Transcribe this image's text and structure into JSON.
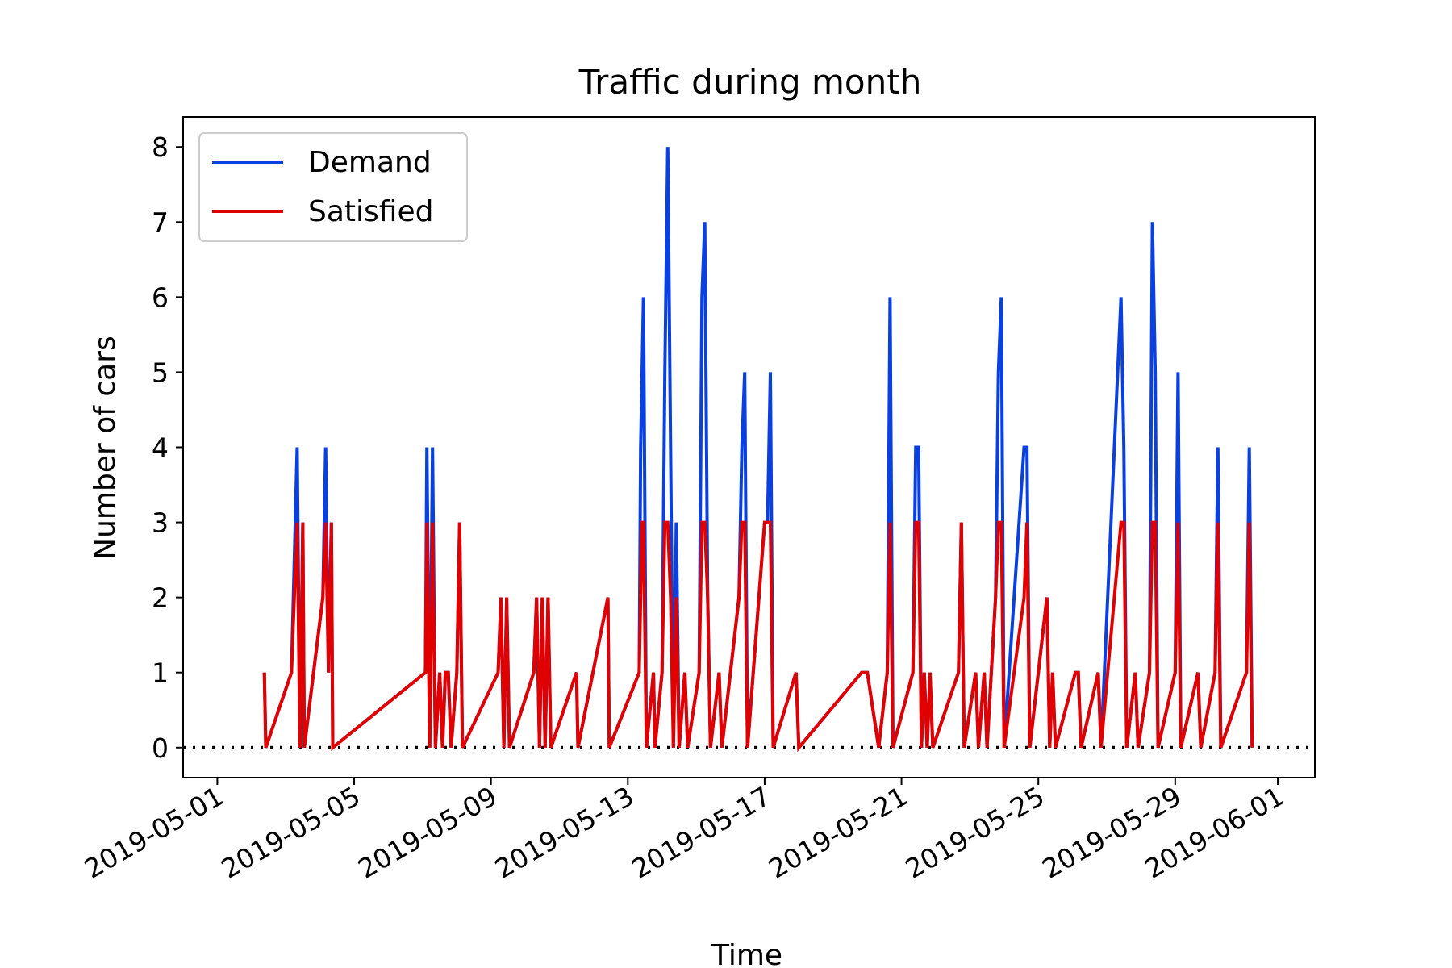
{
  "chart_data": {
    "type": "line",
    "title": "Traffic during month",
    "xlabel": "Time",
    "ylabel": "Number of cars",
    "xlim": [
      "2019-04-30T00:00",
      "2019-06-02T02:00"
    ],
    "ylim": [
      -0.4,
      8.4
    ],
    "x_ticks": [
      "2019-05-01",
      "2019-05-05",
      "2019-05-09",
      "2019-05-13",
      "2019-05-17",
      "2019-05-21",
      "2019-05-25",
      "2019-05-29",
      "2019-06-01"
    ],
    "y_ticks": [
      0,
      1,
      2,
      3,
      4,
      5,
      6,
      7,
      8
    ],
    "grid": false,
    "legend": "upper-left",
    "reference_line": {
      "y": 0,
      "style": "dotted",
      "color": "#000000"
    },
    "series": [
      {
        "name": "Demand",
        "color": "#0a3fe0",
        "points": [
          [
            "2019-05-02T09:00",
            1
          ],
          [
            "2019-05-02T10:00",
            0
          ],
          [
            "2019-05-03T04:00",
            1
          ],
          [
            "2019-05-03T08:00",
            4
          ],
          [
            "2019-05-03T10:00",
            0
          ],
          [
            "2019-05-03T12:00",
            3
          ],
          [
            "2019-05-03T13:00",
            0
          ],
          [
            "2019-05-04T02:00",
            2
          ],
          [
            "2019-05-04T04:00",
            4
          ],
          [
            "2019-05-04T06:00",
            1
          ],
          [
            "2019-05-04T08:00",
            3
          ],
          [
            "2019-05-04T09:00",
            0
          ],
          [
            "2019-05-07T02:00",
            1
          ],
          [
            "2019-05-07T03:00",
            4
          ],
          [
            "2019-05-07T05:00",
            0
          ],
          [
            "2019-05-07T07:00",
            4
          ],
          [
            "2019-05-07T09:00",
            0
          ],
          [
            "2019-05-07T12:00",
            1
          ],
          [
            "2019-05-07T14:00",
            0
          ],
          [
            "2019-05-07T16:00",
            1
          ],
          [
            "2019-05-07T18:00",
            1
          ],
          [
            "2019-05-07T20:00",
            0
          ],
          [
            "2019-05-08T00:00",
            1
          ],
          [
            "2019-05-08T02:00",
            3
          ],
          [
            "2019-05-08T04:00",
            0
          ],
          [
            "2019-05-09T05:00",
            1
          ],
          [
            "2019-05-09T07:00",
            2
          ],
          [
            "2019-05-09T09:00",
            0
          ],
          [
            "2019-05-09T11:00",
            2
          ],
          [
            "2019-05-09T13:00",
            0
          ],
          [
            "2019-05-10T06:00",
            1
          ],
          [
            "2019-05-10T08:00",
            2
          ],
          [
            "2019-05-10T10:00",
            0
          ],
          [
            "2019-05-10T12:00",
            2
          ],
          [
            "2019-05-10T14:00",
            0
          ],
          [
            "2019-05-10T16:00",
            2
          ],
          [
            "2019-05-10T18:00",
            0
          ],
          [
            "2019-05-11T12:00",
            1
          ],
          [
            "2019-05-11T13:00",
            0
          ],
          [
            "2019-05-12T10:00",
            2
          ],
          [
            "2019-05-12T11:00",
            0
          ],
          [
            "2019-05-13T08:00",
            1
          ],
          [
            "2019-05-13T09:00",
            4
          ],
          [
            "2019-05-13T10:00",
            5
          ],
          [
            "2019-05-13T11:00",
            6
          ],
          [
            "2019-05-13T13:00",
            0
          ],
          [
            "2019-05-13T18:00",
            1
          ],
          [
            "2019-05-13T19:00",
            0
          ],
          [
            "2019-05-14T00:00",
            1
          ],
          [
            "2019-05-14T02:00",
            5
          ],
          [
            "2019-05-14T04:00",
            8
          ],
          [
            "2019-05-14T06:00",
            4
          ],
          [
            "2019-05-14T08:00",
            0
          ],
          [
            "2019-05-14T10:00",
            3
          ],
          [
            "2019-05-14T12:00",
            0
          ],
          [
            "2019-05-14T16:00",
            1
          ],
          [
            "2019-05-14T18:00",
            0
          ],
          [
            "2019-05-15T02:00",
            1
          ],
          [
            "2019-05-15T04:00",
            6
          ],
          [
            "2019-05-15T06:00",
            7
          ],
          [
            "2019-05-15T08:00",
            2
          ],
          [
            "2019-05-15T10:00",
            0
          ],
          [
            "2019-05-15T16:00",
            1
          ],
          [
            "2019-05-15T18:00",
            0
          ],
          [
            "2019-05-16T06:00",
            2
          ],
          [
            "2019-05-16T08:00",
            4
          ],
          [
            "2019-05-16T10:00",
            5
          ],
          [
            "2019-05-16T12:00",
            0
          ],
          [
            "2019-05-17T00:00",
            3
          ],
          [
            "2019-05-17T02:00",
            3
          ],
          [
            "2019-05-17T04:00",
            5
          ],
          [
            "2019-05-17T06:00",
            0
          ],
          [
            "2019-05-17T22:00",
            1
          ],
          [
            "2019-05-18T00:00",
            0
          ],
          [
            "2019-05-19T20:00",
            1
          ],
          [
            "2019-05-20T00:00",
            1
          ],
          [
            "2019-05-20T08:00",
            0
          ],
          [
            "2019-05-20T14:00",
            1
          ],
          [
            "2019-05-20T16:00",
            6
          ],
          [
            "2019-05-20T18:00",
            0
          ],
          [
            "2019-05-21T08:00",
            1
          ],
          [
            "2019-05-21T10:00",
            4
          ],
          [
            "2019-05-21T12:00",
            4
          ],
          [
            "2019-05-21T14:00",
            0
          ],
          [
            "2019-05-21T16:00",
            1
          ],
          [
            "2019-05-21T18:00",
            0
          ],
          [
            "2019-05-21T20:00",
            1
          ],
          [
            "2019-05-21T22:00",
            0
          ],
          [
            "2019-05-22T16:00",
            1
          ],
          [
            "2019-05-22T18:00",
            3
          ],
          [
            "2019-05-22T20:00",
            0
          ],
          [
            "2019-05-23T04:00",
            1
          ],
          [
            "2019-05-23T06:00",
            0
          ],
          [
            "2019-05-23T10:00",
            1
          ],
          [
            "2019-05-23T12:00",
            0
          ],
          [
            "2019-05-23T18:00",
            2
          ],
          [
            "2019-05-23T20:00",
            5
          ],
          [
            "2019-05-23T22:00",
            6
          ],
          [
            "2019-05-24T00:00",
            0
          ],
          [
            "2019-05-24T14:00",
            4
          ],
          [
            "2019-05-24T16:00",
            4
          ],
          [
            "2019-05-24T18:00",
            0
          ],
          [
            "2019-05-25T06:00",
            2
          ],
          [
            "2019-05-25T08:00",
            0
          ],
          [
            "2019-05-25T10:00",
            1
          ],
          [
            "2019-05-25T12:00",
            0
          ],
          [
            "2019-05-26T02:00",
            1
          ],
          [
            "2019-05-26T04:00",
            1
          ],
          [
            "2019-05-26T06:00",
            0
          ],
          [
            "2019-05-26T18:00",
            1
          ],
          [
            "2019-05-26T20:00",
            0
          ],
          [
            "2019-05-27T10:00",
            6
          ],
          [
            "2019-05-27T12:00",
            4
          ],
          [
            "2019-05-27T14:00",
            0
          ],
          [
            "2019-05-27T20:00",
            1
          ],
          [
            "2019-05-27T22:00",
            0
          ],
          [
            "2019-05-28T06:00",
            1
          ],
          [
            "2019-05-28T08:00",
            7
          ],
          [
            "2019-05-28T10:00",
            5
          ],
          [
            "2019-05-28T12:00",
            0
          ],
          [
            "2019-05-29T00:00",
            1
          ],
          [
            "2019-05-29T02:00",
            5
          ],
          [
            "2019-05-29T04:00",
            0
          ],
          [
            "2019-05-29T16:00",
            1
          ],
          [
            "2019-05-29T18:00",
            0
          ],
          [
            "2019-05-30T04:00",
            1
          ],
          [
            "2019-05-30T06:00",
            4
          ],
          [
            "2019-05-30T08:00",
            0
          ],
          [
            "2019-05-31T02:00",
            1
          ],
          [
            "2019-05-31T04:00",
            4
          ],
          [
            "2019-05-31T06:00",
            0
          ]
        ]
      },
      {
        "name": "Satisfied",
        "color": "#e00000",
        "points": [
          [
            "2019-05-02T09:00",
            1
          ],
          [
            "2019-05-02T10:00",
            0
          ],
          [
            "2019-05-03T04:00",
            1
          ],
          [
            "2019-05-03T08:00",
            3
          ],
          [
            "2019-05-03T10:00",
            0
          ],
          [
            "2019-05-03T12:00",
            3
          ],
          [
            "2019-05-03T13:00",
            0
          ],
          [
            "2019-05-04T02:00",
            2
          ],
          [
            "2019-05-04T04:00",
            3
          ],
          [
            "2019-05-04T06:00",
            1
          ],
          [
            "2019-05-04T08:00",
            3
          ],
          [
            "2019-05-04T09:00",
            0
          ],
          [
            "2019-05-07T02:00",
            1
          ],
          [
            "2019-05-07T03:00",
            3
          ],
          [
            "2019-05-07T05:00",
            0
          ],
          [
            "2019-05-07T07:00",
            3
          ],
          [
            "2019-05-07T09:00",
            0
          ],
          [
            "2019-05-07T12:00",
            1
          ],
          [
            "2019-05-07T14:00",
            0
          ],
          [
            "2019-05-07T16:00",
            1
          ],
          [
            "2019-05-07T18:00",
            1
          ],
          [
            "2019-05-07T20:00",
            0
          ],
          [
            "2019-05-08T00:00",
            1
          ],
          [
            "2019-05-08T02:00",
            3
          ],
          [
            "2019-05-08T04:00",
            0
          ],
          [
            "2019-05-09T05:00",
            1
          ],
          [
            "2019-05-09T07:00",
            2
          ],
          [
            "2019-05-09T09:00",
            0
          ],
          [
            "2019-05-09T11:00",
            2
          ],
          [
            "2019-05-09T13:00",
            0
          ],
          [
            "2019-05-10T06:00",
            1
          ],
          [
            "2019-05-10T08:00",
            2
          ],
          [
            "2019-05-10T10:00",
            0
          ],
          [
            "2019-05-10T12:00",
            2
          ],
          [
            "2019-05-10T14:00",
            0
          ],
          [
            "2019-05-10T16:00",
            2
          ],
          [
            "2019-05-10T18:00",
            0
          ],
          [
            "2019-05-11T12:00",
            1
          ],
          [
            "2019-05-11T13:00",
            0
          ],
          [
            "2019-05-12T10:00",
            2
          ],
          [
            "2019-05-12T11:00",
            0
          ],
          [
            "2019-05-13T08:00",
            1
          ],
          [
            "2019-05-13T09:00",
            2
          ],
          [
            "2019-05-13T10:00",
            3
          ],
          [
            "2019-05-13T11:00",
            3
          ],
          [
            "2019-05-13T13:00",
            0
          ],
          [
            "2019-05-13T18:00",
            1
          ],
          [
            "2019-05-13T19:00",
            0
          ],
          [
            "2019-05-14T00:00",
            1
          ],
          [
            "2019-05-14T02:00",
            3
          ],
          [
            "2019-05-14T04:00",
            3
          ],
          [
            "2019-05-14T06:00",
            2
          ],
          [
            "2019-05-14T08:00",
            0
          ],
          [
            "2019-05-14T10:00",
            2
          ],
          [
            "2019-05-14T12:00",
            0
          ],
          [
            "2019-05-14T16:00",
            1
          ],
          [
            "2019-05-14T18:00",
            0
          ],
          [
            "2019-05-15T02:00",
            1
          ],
          [
            "2019-05-15T04:00",
            3
          ],
          [
            "2019-05-15T06:00",
            3
          ],
          [
            "2019-05-15T08:00",
            2
          ],
          [
            "2019-05-15T10:00",
            0
          ],
          [
            "2019-05-15T16:00",
            1
          ],
          [
            "2019-05-15T18:00",
            0
          ],
          [
            "2019-05-16T06:00",
            2
          ],
          [
            "2019-05-16T08:00",
            3
          ],
          [
            "2019-05-16T10:00",
            3
          ],
          [
            "2019-05-16T12:00",
            0
          ],
          [
            "2019-05-17T00:00",
            3
          ],
          [
            "2019-05-17T02:00",
            3
          ],
          [
            "2019-05-17T04:00",
            3
          ],
          [
            "2019-05-17T06:00",
            0
          ],
          [
            "2019-05-17T22:00",
            1
          ],
          [
            "2019-05-18T00:00",
            0
          ],
          [
            "2019-05-19T20:00",
            1
          ],
          [
            "2019-05-20T00:00",
            1
          ],
          [
            "2019-05-20T08:00",
            0
          ],
          [
            "2019-05-20T14:00",
            1
          ],
          [
            "2019-05-20T16:00",
            3
          ],
          [
            "2019-05-20T18:00",
            0
          ],
          [
            "2019-05-21T08:00",
            1
          ],
          [
            "2019-05-21T10:00",
            3
          ],
          [
            "2019-05-21T12:00",
            3
          ],
          [
            "2019-05-21T14:00",
            0
          ],
          [
            "2019-05-21T16:00",
            1
          ],
          [
            "2019-05-21T18:00",
            0
          ],
          [
            "2019-05-21T20:00",
            1
          ],
          [
            "2019-05-21T22:00",
            0
          ],
          [
            "2019-05-22T16:00",
            1
          ],
          [
            "2019-05-22T18:00",
            3
          ],
          [
            "2019-05-22T20:00",
            0
          ],
          [
            "2019-05-23T04:00",
            1
          ],
          [
            "2019-05-23T06:00",
            0
          ],
          [
            "2019-05-23T10:00",
            1
          ],
          [
            "2019-05-23T12:00",
            0
          ],
          [
            "2019-05-23T18:00",
            2
          ],
          [
            "2019-05-23T20:00",
            3
          ],
          [
            "2019-05-23T22:00",
            3
          ],
          [
            "2019-05-24T00:00",
            0
          ],
          [
            "2019-05-24T14:00",
            2
          ],
          [
            "2019-05-24T16:00",
            3
          ],
          [
            "2019-05-24T18:00",
            0
          ],
          [
            "2019-05-25T06:00",
            2
          ],
          [
            "2019-05-25T08:00",
            0
          ],
          [
            "2019-05-25T10:00",
            1
          ],
          [
            "2019-05-25T12:00",
            0
          ],
          [
            "2019-05-26T02:00",
            1
          ],
          [
            "2019-05-26T04:00",
            1
          ],
          [
            "2019-05-26T06:00",
            0
          ],
          [
            "2019-05-26T18:00",
            1
          ],
          [
            "2019-05-26T20:00",
            0
          ],
          [
            "2019-05-27T10:00",
            3
          ],
          [
            "2019-05-27T12:00",
            3
          ],
          [
            "2019-05-27T14:00",
            0
          ],
          [
            "2019-05-27T20:00",
            1
          ],
          [
            "2019-05-27T22:00",
            0
          ],
          [
            "2019-05-28T06:00",
            1
          ],
          [
            "2019-05-28T08:00",
            3
          ],
          [
            "2019-05-28T10:00",
            3
          ],
          [
            "2019-05-28T12:00",
            0
          ],
          [
            "2019-05-29T00:00",
            1
          ],
          [
            "2019-05-29T02:00",
            3
          ],
          [
            "2019-05-29T04:00",
            0
          ],
          [
            "2019-05-29T16:00",
            1
          ],
          [
            "2019-05-29T18:00",
            0
          ],
          [
            "2019-05-30T04:00",
            1
          ],
          [
            "2019-05-30T06:00",
            3
          ],
          [
            "2019-05-30T08:00",
            0
          ],
          [
            "2019-05-31T02:00",
            1
          ],
          [
            "2019-05-31T04:00",
            3
          ],
          [
            "2019-05-31T06:00",
            0
          ]
        ]
      }
    ]
  }
}
